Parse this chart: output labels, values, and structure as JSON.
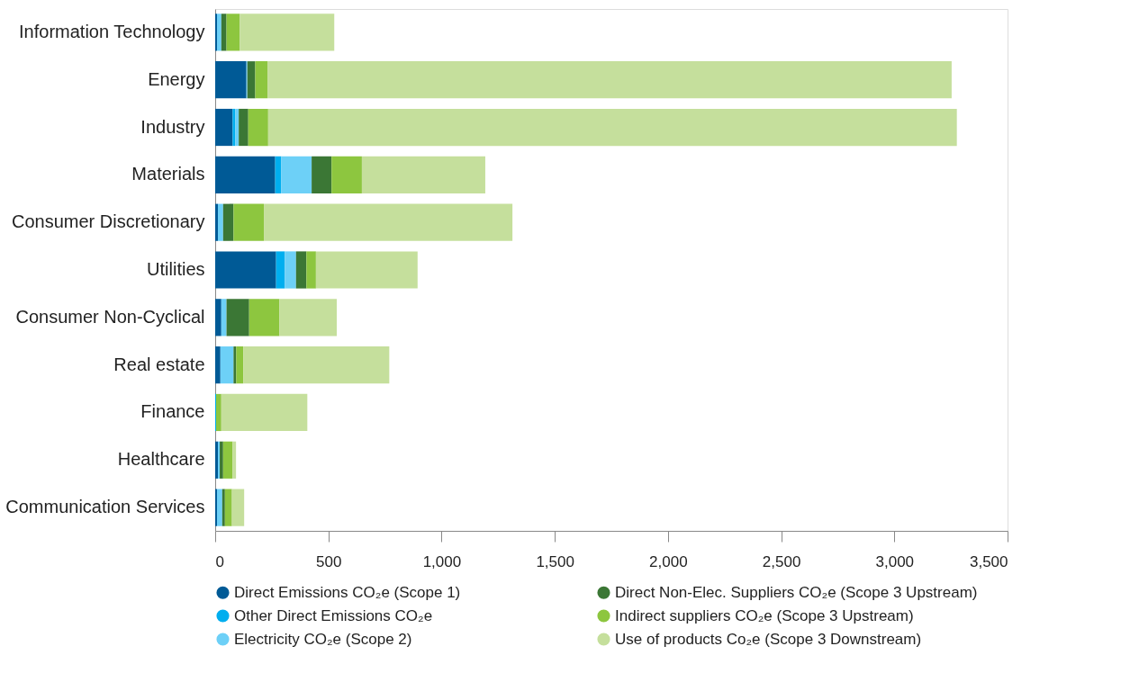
{
  "chart_data": {
    "type": "bar",
    "orientation": "horizontal",
    "stacked": true,
    "categories": [
      "Information Technology",
      "Energy",
      "Industry",
      "Materials",
      "Consumer Discretionary",
      "Utilities",
      "Consumer Non-Cyclical",
      "Real estate",
      "Finance",
      "Healthcare",
      "Communication Services"
    ],
    "series": [
      {
        "name": "Direct Emissions CO₂e (Scope 1)",
        "color": "#005a96",
        "values": [
          8,
          138,
          77,
          265,
          12,
          269,
          27,
          23,
          null,
          12,
          8
        ]
      },
      {
        "name": "Other Direct Emissions CO₂e",
        "color": "#00aeef",
        "values": [
          null,
          null,
          12,
          27,
          null,
          38,
          null,
          null,
          4,
          null,
          null
        ]
      },
      {
        "name": "Electricity CO₂e (Scope 2)",
        "color": "#6dd0f7",
        "values": [
          19,
          4,
          15,
          134,
          23,
          50,
          23,
          58,
          null,
          8,
          23
        ]
      },
      {
        "name": "Direct Non-Elec. Suppliers CO₂e (Scope 3 Upstream)",
        "color": "#3b7735",
        "values": [
          23,
          35,
          42,
          88,
          46,
          46,
          100,
          12,
          null,
          15,
          12
        ]
      },
      {
        "name": "Indirect suppliers CO₂e (Scope 3 Upstream)",
        "color": "#8dc63f",
        "values": [
          58,
          54,
          88,
          134,
          134,
          42,
          134,
          31,
          23,
          42,
          31
        ]
      },
      {
        "name": "Use of products Co₂e (Scope 3 Downstream)",
        "color": "#c5df9c",
        "values": [
          418,
          3022,
          3042,
          545,
          1098,
          449,
          253,
          645,
          380,
          15,
          54
        ]
      }
    ],
    "xlim": [
      0,
      3500
    ],
    "xticks": [
      0,
      500,
      {
        "value": 1000,
        "label": "1,000"
      },
      {
        "value": 1500,
        "label": "1,500"
      },
      {
        "value": 2000,
        "label": "2,000"
      },
      {
        "value": 2500,
        "label": "2,500"
      },
      {
        "value": 3000,
        "label": "3,000"
      },
      {
        "value": 3500,
        "label": "3,500"
      }
    ],
    "grid": false,
    "legend": "bottom"
  }
}
